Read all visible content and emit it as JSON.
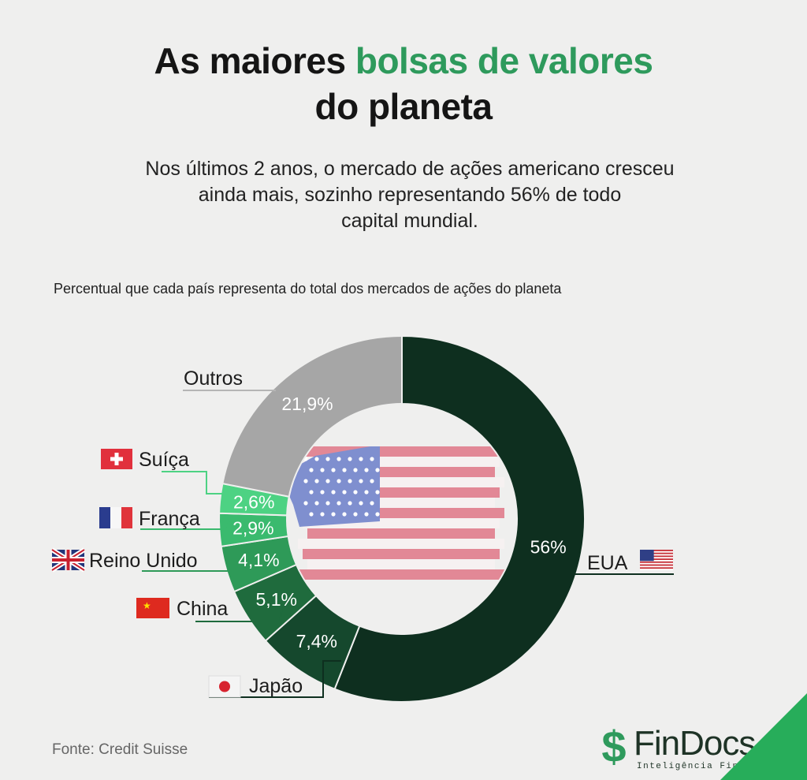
{
  "header": {
    "title_part1": "As maiores ",
    "title_accent": "bolsas de valores",
    "title_line2": "do planeta",
    "subtitle_line1": "Nos últimos 2 anos, o mercado de ações americano cresceu",
    "subtitle_line2": "ainda mais, sozinho representando 56% de todo",
    "subtitle_line3": "capital mundial."
  },
  "chart_data": {
    "type": "pie",
    "title": "Percentual que cada país representa do total dos mercados de ações do planeta",
    "unit": "%",
    "slices": [
      {
        "label": "EUA",
        "value": 56,
        "value_label": "56%",
        "color": "#0e2f1f",
        "flag": "us-flag-icon"
      },
      {
        "label": "Japão",
        "value": 7.4,
        "value_label": "7,4%",
        "color": "#15482d",
        "flag": "japan-flag-icon"
      },
      {
        "label": "China",
        "value": 5.1,
        "value_label": "5,1%",
        "color": "#1f6b3d",
        "flag": "china-flag-icon"
      },
      {
        "label": "Reino Unido",
        "value": 4.1,
        "value_label": "4,1%",
        "color": "#2e9a58",
        "flag": "uk-flag-icon"
      },
      {
        "label": "França",
        "value": 2.9,
        "value_label": "2,9%",
        "color": "#3aba6e",
        "flag": "france-flag-icon"
      },
      {
        "label": "Suíça",
        "value": 2.6,
        "value_label": "2,6%",
        "color": "#4dd283",
        "flag": "switzerland-flag-icon"
      },
      {
        "label": "Outros",
        "value": 21.9,
        "value_label": "21,9%",
        "color": "#a6a6a6",
        "flag": ""
      }
    ]
  },
  "footer": {
    "source": "Fonte: Credit Suisse",
    "logo_mark": "$",
    "logo_name": "FinDocs",
    "logo_tagline": "Inteligência Financeira"
  }
}
